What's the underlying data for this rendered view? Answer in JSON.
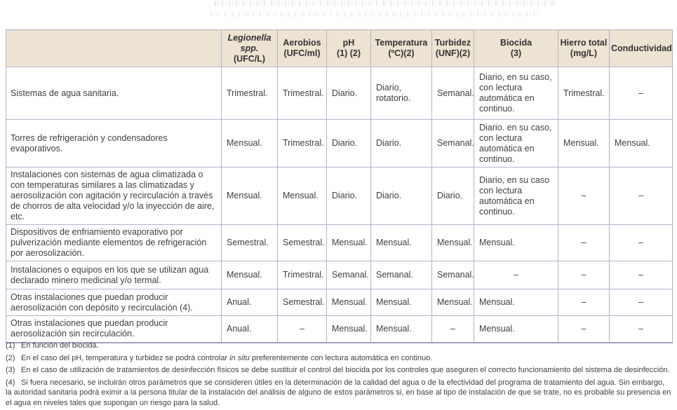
{
  "colors": {
    "header_bg": "#ede3d2",
    "border": "#b3b3cd",
    "text": "#3f3f3f"
  },
  "table": {
    "columns": [
      {
        "id": "instalacion",
        "line1": "",
        "line2": "",
        "italic": false
      },
      {
        "id": "legionella",
        "line1": "Legionella spp.",
        "line2": "(UFC/L)",
        "italic": true
      },
      {
        "id": "aerobios",
        "line1": "Aerobios",
        "line2": "(UFC/ml)",
        "italic": false
      },
      {
        "id": "ph",
        "line1": "pH",
        "line2": "(1) (2)",
        "italic": false
      },
      {
        "id": "temperatura",
        "line1": "Temperatura",
        "line2": "(ºC)(2)",
        "italic": false
      },
      {
        "id": "turbidez",
        "line1": "Turbidez",
        "line2": "(UNF)(2)",
        "italic": false
      },
      {
        "id": "biocida",
        "line1": "Biocida",
        "line2": "(3)",
        "italic": false
      },
      {
        "id": "hierro-total",
        "line1": "Hierro total",
        "line2": "(mg/L)",
        "italic": false
      },
      {
        "id": "conductividad",
        "line1": "Conductividad",
        "line2": "",
        "italic": false
      }
    ],
    "rows": [
      {
        "label": "Sistemas de agua sanitaria.",
        "values": [
          "Trimestral.",
          "Trimestral.",
          "Diario.",
          "Diario, rotatorio.",
          "Semanal.",
          "Diario, en su caso, con lectura automática en continuo.",
          "Trimestral.",
          "–"
        ]
      },
      {
        "label": "Torres de refrigeración y condensadores evaporativos.",
        "values": [
          "Mensual.",
          "Trimestral.",
          "Diario.",
          "Diario.",
          "Semanal.",
          "Diario. en su caso, con lectura automática en continuo.",
          "Mensual.",
          "Mensual."
        ]
      },
      {
        "label": "Instalaciones con sistemas de agua climatizada o con temperaturas similares a las climatizadas y aerosolización con agitación y recirculación a través de chorros de alta velocidad y/o la inyección de aire, etc.",
        "values": [
          "Mensual.",
          "Mensual.",
          "Diario.",
          "Diario.",
          "Diario.",
          "Diario, en su caso con lectura automática en continuo.",
          "–",
          "–"
        ]
      },
      {
        "label": "Dispositivos de enfriamiento evaporativo por pulverización mediante elementos de refrigeración por aerosolización.",
        "values": [
          "Semestral.",
          "Semestral.",
          "Mensual.",
          "Mensual.",
          "Mensual.",
          "Mensual.",
          "–",
          "–"
        ]
      },
      {
        "label": "Instalaciones o equipos en los que se utilizan agua declarado minero medicinal y/o termal.",
        "values": [
          "Mensual.",
          "Trimestral.",
          "Semanal.",
          "Semanal.",
          "Semanal.",
          "–",
          "–",
          "–"
        ]
      },
      {
        "label": "Otras instalaciones que puedan producir aerosolización con depósito y recirculación (4).",
        "values": [
          "Anual.",
          "Semestral.",
          "Mensual.",
          "Mensual.",
          "Mensual.",
          "Mensual.",
          "–",
          "–"
        ]
      },
      {
        "label": "Otras instalaciones que puedan producir aerosolización sin recirculación.",
        "values": [
          "Anual.",
          "–",
          "Mensual.",
          "Mensual.",
          "–",
          "Mensual.",
          "–",
          "–"
        ]
      }
    ]
  },
  "footnotes": [
    {
      "num": "(1)",
      "pre": "En función del biocida.",
      "em": "",
      "post": ""
    },
    {
      "num": "(2)",
      "pre": "En el caso del pH, temperatura y turbidez se podrá controlar ",
      "em": "in situ",
      "post": " preferentemente con lectura automática en continuo."
    },
    {
      "num": "(3)",
      "pre": "En el caso de utilización de tratamientos de desinfección físicos se debe sustituir el control del biocida por los controles que aseguren el correcto funcionamiento del sistema de desinfección.",
      "em": "",
      "post": ""
    },
    {
      "num": "(4)",
      "pre": "Si fuera necesario, se incluirán otros parámetros que se consideren útiles en la determinación de la calidad del agua o de la efectividad del programa de tratamiento del agua. Sin embargo, la autoridad sanitaria podrá eximir a la persona titular de la instalación del análisis de alguno de estos parámetros si, en base al tipo de instalación de que se trate, no es probable su presencia en el agua en niveles tales que supongan un riesgo para la salud.",
      "em": "",
      "post": ""
    }
  ]
}
